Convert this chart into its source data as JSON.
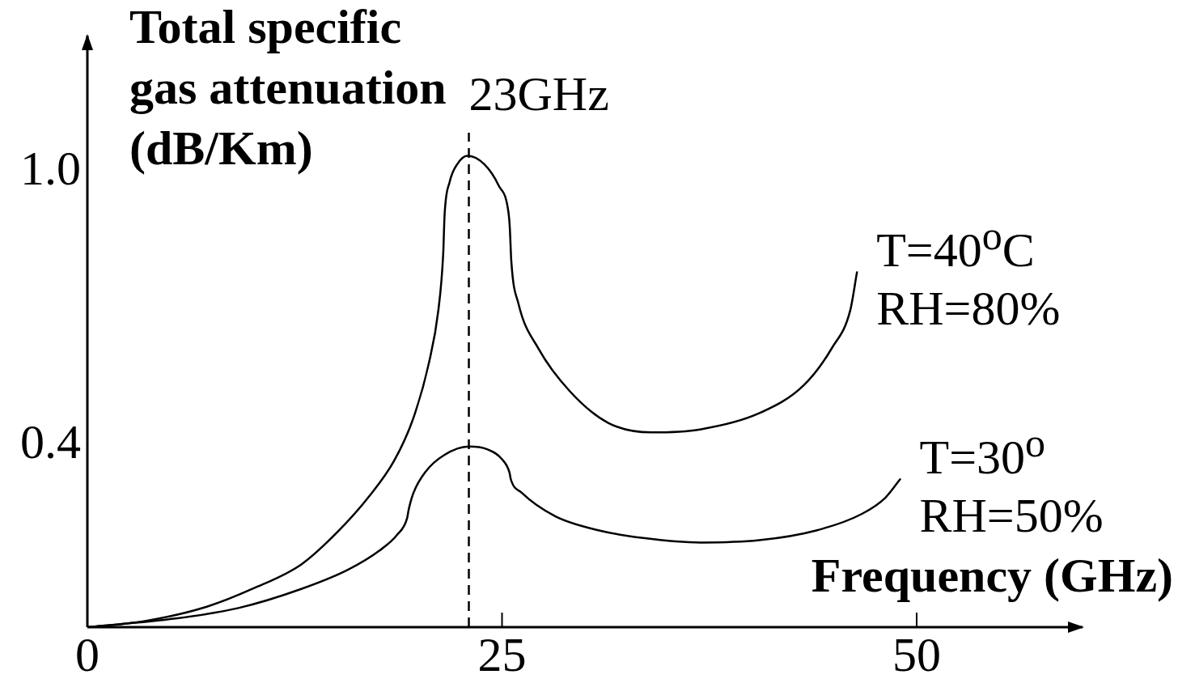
{
  "chart_data": {
    "type": "line",
    "xlabel": "Frequency (GHz)",
    "ylabel": "Total specific gas attenuation (dB/Km)",
    "xlim": [
      0,
      60
    ],
    "xticks": [
      0,
      25,
      50
    ],
    "ylim": [
      0,
      1.3
    ],
    "yticks": [
      0.4,
      {
        "value": 1,
        "label": "1.0"
      }
    ],
    "marker": "none",
    "line_style": "solid",
    "ref_lines": [
      {
        "axis": "x",
        "value": 23,
        "label": "23GHz",
        "color": "#000000",
        "line_style": "dashed"
      }
    ],
    "series": [
      {
        "name": "T=40$^{o}$C\nRH=80%",
        "color": "#000000",
        "x": [
          0,
          3.4,
          7.2,
          10.0,
          12.9,
          15.1,
          17.0,
          18.5,
          19.65,
          20.6,
          21.16,
          21.45,
          21.54,
          21.84,
          22.31,
          22.92,
          23.94,
          24.79,
          25.39,
          25.47,
          25.56,
          25.99,
          27.2,
          29.1,
          31.4,
          34.0,
          37.0,
          40.5,
          43.2,
          44.9,
          46.0,
          46.4
        ],
        "values": [
          0,
          0.013,
          0.045,
          0.085,
          0.138,
          0.21,
          0.288,
          0.366,
          0.459,
          0.582,
          0.696,
          0.818,
          0.908,
          0.978,
          1.018,
          1.036,
          1.017,
          0.971,
          0.911,
          0.877,
          0.804,
          0.711,
          0.612,
          0.518,
          0.449,
          0.428,
          0.435,
          0.47,
          0.532,
          0.614,
          0.697,
          0.78
        ]
      },
      {
        "name": "T=30$^{o}$\nRH=50%",
        "color": "#000000",
        "x": [
          0,
          5.3,
          9.1,
          12.9,
          15.7,
          17.6,
          18.7,
          19.28,
          19.37,
          19.65,
          20.4,
          21.5,
          23.0,
          24.1,
          25.0,
          25.45,
          25.53,
          26.2,
          28.2,
          30.8,
          33.5,
          37.0,
          40.5,
          44.0,
          46.7,
          48.1,
          49.0
        ],
        "values": [
          0,
          0.019,
          0.042,
          0.084,
          0.126,
          0.168,
          0.204,
          0.24,
          0.258,
          0.294,
          0.342,
          0.378,
          0.397,
          0.391,
          0.369,
          0.34,
          0.325,
          0.295,
          0.244,
          0.213,
          0.196,
          0.186,
          0.191,
          0.213,
          0.249,
          0.284,
          0.325
        ]
      }
    ]
  }
}
